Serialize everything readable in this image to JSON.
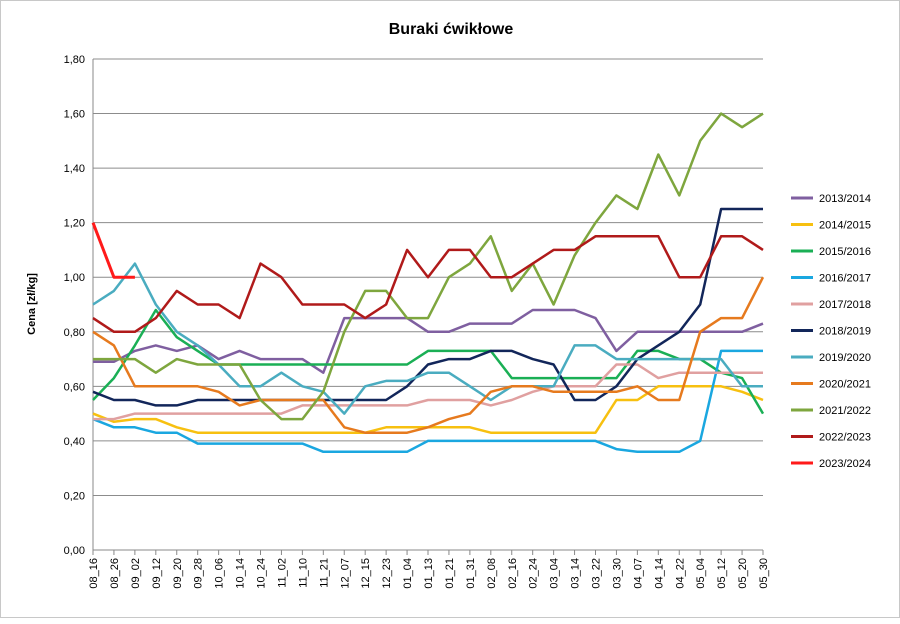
{
  "chart_data": {
    "type": "line",
    "title": "Buraki ćwikłowe",
    "xlabel": "",
    "ylabel": "Cena [zł/kg]",
    "ylim": [
      0,
      1.8
    ],
    "yticks": [
      "0,00",
      "0,20",
      "0,40",
      "0,60",
      "0,80",
      "1,00",
      "1,20",
      "1,40",
      "1,60",
      "1,80"
    ],
    "categories": [
      "08_16",
      "08_26",
      "09_02",
      "09_12",
      "09_20",
      "09_28",
      "10_06",
      "10_14",
      "10_24",
      "11_02",
      "11_10",
      "11_21",
      "12_07",
      "12_15",
      "12_23",
      "01_04",
      "01_13",
      "01_21",
      "01_31",
      "02_08",
      "02_16",
      "02_24",
      "03_04",
      "03_14",
      "03_22",
      "03_30",
      "04_07",
      "04_14",
      "04_22",
      "05_04",
      "05_12",
      "05_20",
      "05_30"
    ],
    "grid": true,
    "legend_position": "right",
    "series": [
      {
        "name": "2013/2014",
        "color": "#7f5fa0",
        "values": [
          0.69,
          0.69,
          0.73,
          0.75,
          0.73,
          0.75,
          0.7,
          0.73,
          0.7,
          0.7,
          0.7,
          0.65,
          0.85,
          0.85,
          0.85,
          0.85,
          0.8,
          0.8,
          0.83,
          0.83,
          0.83,
          0.88,
          0.88,
          0.88,
          0.85,
          0.73,
          0.8,
          0.8,
          0.8,
          0.8,
          0.8,
          0.8,
          0.83
        ]
      },
      {
        "name": "2014/2015",
        "color": "#f7c010",
        "values": [
          0.5,
          0.47,
          0.48,
          0.48,
          0.45,
          0.43,
          0.43,
          0.43,
          0.43,
          0.43,
          0.43,
          0.43,
          0.43,
          0.43,
          0.45,
          0.45,
          0.45,
          0.45,
          0.45,
          0.43,
          0.43,
          0.43,
          0.43,
          0.43,
          0.43,
          0.55,
          0.55,
          0.6,
          0.6,
          0.6,
          0.6,
          0.58,
          0.55
        ]
      },
      {
        "name": "2015/2016",
        "color": "#1aaf55",
        "values": [
          0.55,
          0.63,
          0.75,
          0.88,
          0.78,
          0.73,
          0.68,
          0.68,
          0.68,
          0.68,
          0.68,
          0.68,
          0.68,
          0.68,
          0.68,
          0.68,
          0.73,
          0.73,
          0.73,
          0.73,
          0.63,
          0.63,
          0.63,
          0.63,
          0.63,
          0.63,
          0.73,
          0.73,
          0.7,
          0.7,
          0.65,
          0.63,
          0.5
        ]
      },
      {
        "name": "2016/2017",
        "color": "#1aa7e0",
        "values": [
          0.48,
          0.45,
          0.45,
          0.43,
          0.43,
          0.39,
          0.39,
          0.39,
          0.39,
          0.39,
          0.39,
          0.36,
          0.36,
          0.36,
          0.36,
          0.36,
          0.4,
          0.4,
          0.4,
          0.4,
          0.4,
          0.4,
          0.4,
          0.4,
          0.4,
          0.37,
          0.36,
          0.36,
          0.36,
          0.4,
          0.73,
          0.73,
          0.73
        ]
      },
      {
        "name": "2017/2018",
        "color": "#e0a0a0",
        "values": [
          0.48,
          0.48,
          0.5,
          0.5,
          0.5,
          0.5,
          0.5,
          0.5,
          0.5,
          0.5,
          0.53,
          0.53,
          0.53,
          0.53,
          0.53,
          0.53,
          0.55,
          0.55,
          0.55,
          0.53,
          0.55,
          0.58,
          0.6,
          0.6,
          0.6,
          0.68,
          0.68,
          0.63,
          0.65,
          0.65,
          0.65,
          0.65,
          0.65
        ]
      },
      {
        "name": "2018/2019",
        "color": "#12265a",
        "values": [
          0.58,
          0.55,
          0.55,
          0.53,
          0.53,
          0.55,
          0.55,
          0.55,
          0.55,
          0.55,
          0.55,
          0.55,
          0.55,
          0.55,
          0.55,
          0.6,
          0.68,
          0.7,
          0.7,
          0.73,
          0.73,
          0.7,
          0.68,
          0.55,
          0.55,
          0.6,
          0.7,
          0.75,
          0.8,
          0.9,
          1.25,
          1.25,
          1.25
        ]
      },
      {
        "name": "2019/2020",
        "color": "#4aacc0",
        "values": [
          0.9,
          0.95,
          1.05,
          0.9,
          0.8,
          0.75,
          0.68,
          0.6,
          0.6,
          0.65,
          0.6,
          0.58,
          0.5,
          0.6,
          0.62,
          0.62,
          0.65,
          0.65,
          0.6,
          0.55,
          0.6,
          0.6,
          0.6,
          0.75,
          0.75,
          0.7,
          0.7,
          0.7,
          0.7,
          0.7,
          0.7,
          0.6,
          0.6
        ]
      },
      {
        "name": "2020/2021",
        "color": "#e67a1e",
        "values": [
          0.8,
          0.75,
          0.6,
          0.6,
          0.6,
          0.6,
          0.58,
          0.53,
          0.55,
          0.55,
          0.55,
          0.55,
          0.45,
          0.43,
          0.43,
          0.43,
          0.45,
          0.48,
          0.5,
          0.58,
          0.6,
          0.6,
          0.58,
          0.58,
          0.58,
          0.58,
          0.6,
          0.55,
          0.55,
          0.8,
          0.85,
          0.85,
          1.0
        ]
      },
      {
        "name": "2021/2022",
        "color": "#7ea63e",
        "values": [
          0.7,
          0.7,
          0.7,
          0.65,
          0.7,
          0.68,
          0.68,
          0.68,
          0.55,
          0.48,
          0.48,
          0.58,
          0.8,
          0.95,
          0.95,
          0.85,
          0.85,
          1.0,
          1.05,
          1.15,
          0.95,
          1.05,
          0.9,
          1.08,
          1.2,
          1.3,
          1.25,
          1.45,
          1.3,
          1.5,
          1.6,
          1.55,
          1.6
        ]
      },
      {
        "name": "2022/2023",
        "color": "#b01a1a",
        "values": [
          0.85,
          0.8,
          0.8,
          0.85,
          0.95,
          0.9,
          0.9,
          0.85,
          1.05,
          1.0,
          0.9,
          0.9,
          0.9,
          0.85,
          0.9,
          1.1,
          1.0,
          1.1,
          1.1,
          1.0,
          1.0,
          1.05,
          1.1,
          1.1,
          1.15,
          1.15,
          1.15,
          1.15,
          1.0,
          1.0,
          1.15,
          1.15,
          1.1
        ]
      },
      {
        "name": "2023/2024",
        "color": "#ff1a1a",
        "values": [
          1.2,
          1.0,
          1.0,
          null,
          null,
          null,
          null,
          null,
          null,
          null,
          null,
          null,
          null,
          null,
          null,
          null,
          null,
          null,
          null,
          null,
          null,
          null,
          null,
          null,
          null,
          null,
          null,
          null,
          null,
          null,
          null,
          null,
          null
        ]
      }
    ]
  }
}
